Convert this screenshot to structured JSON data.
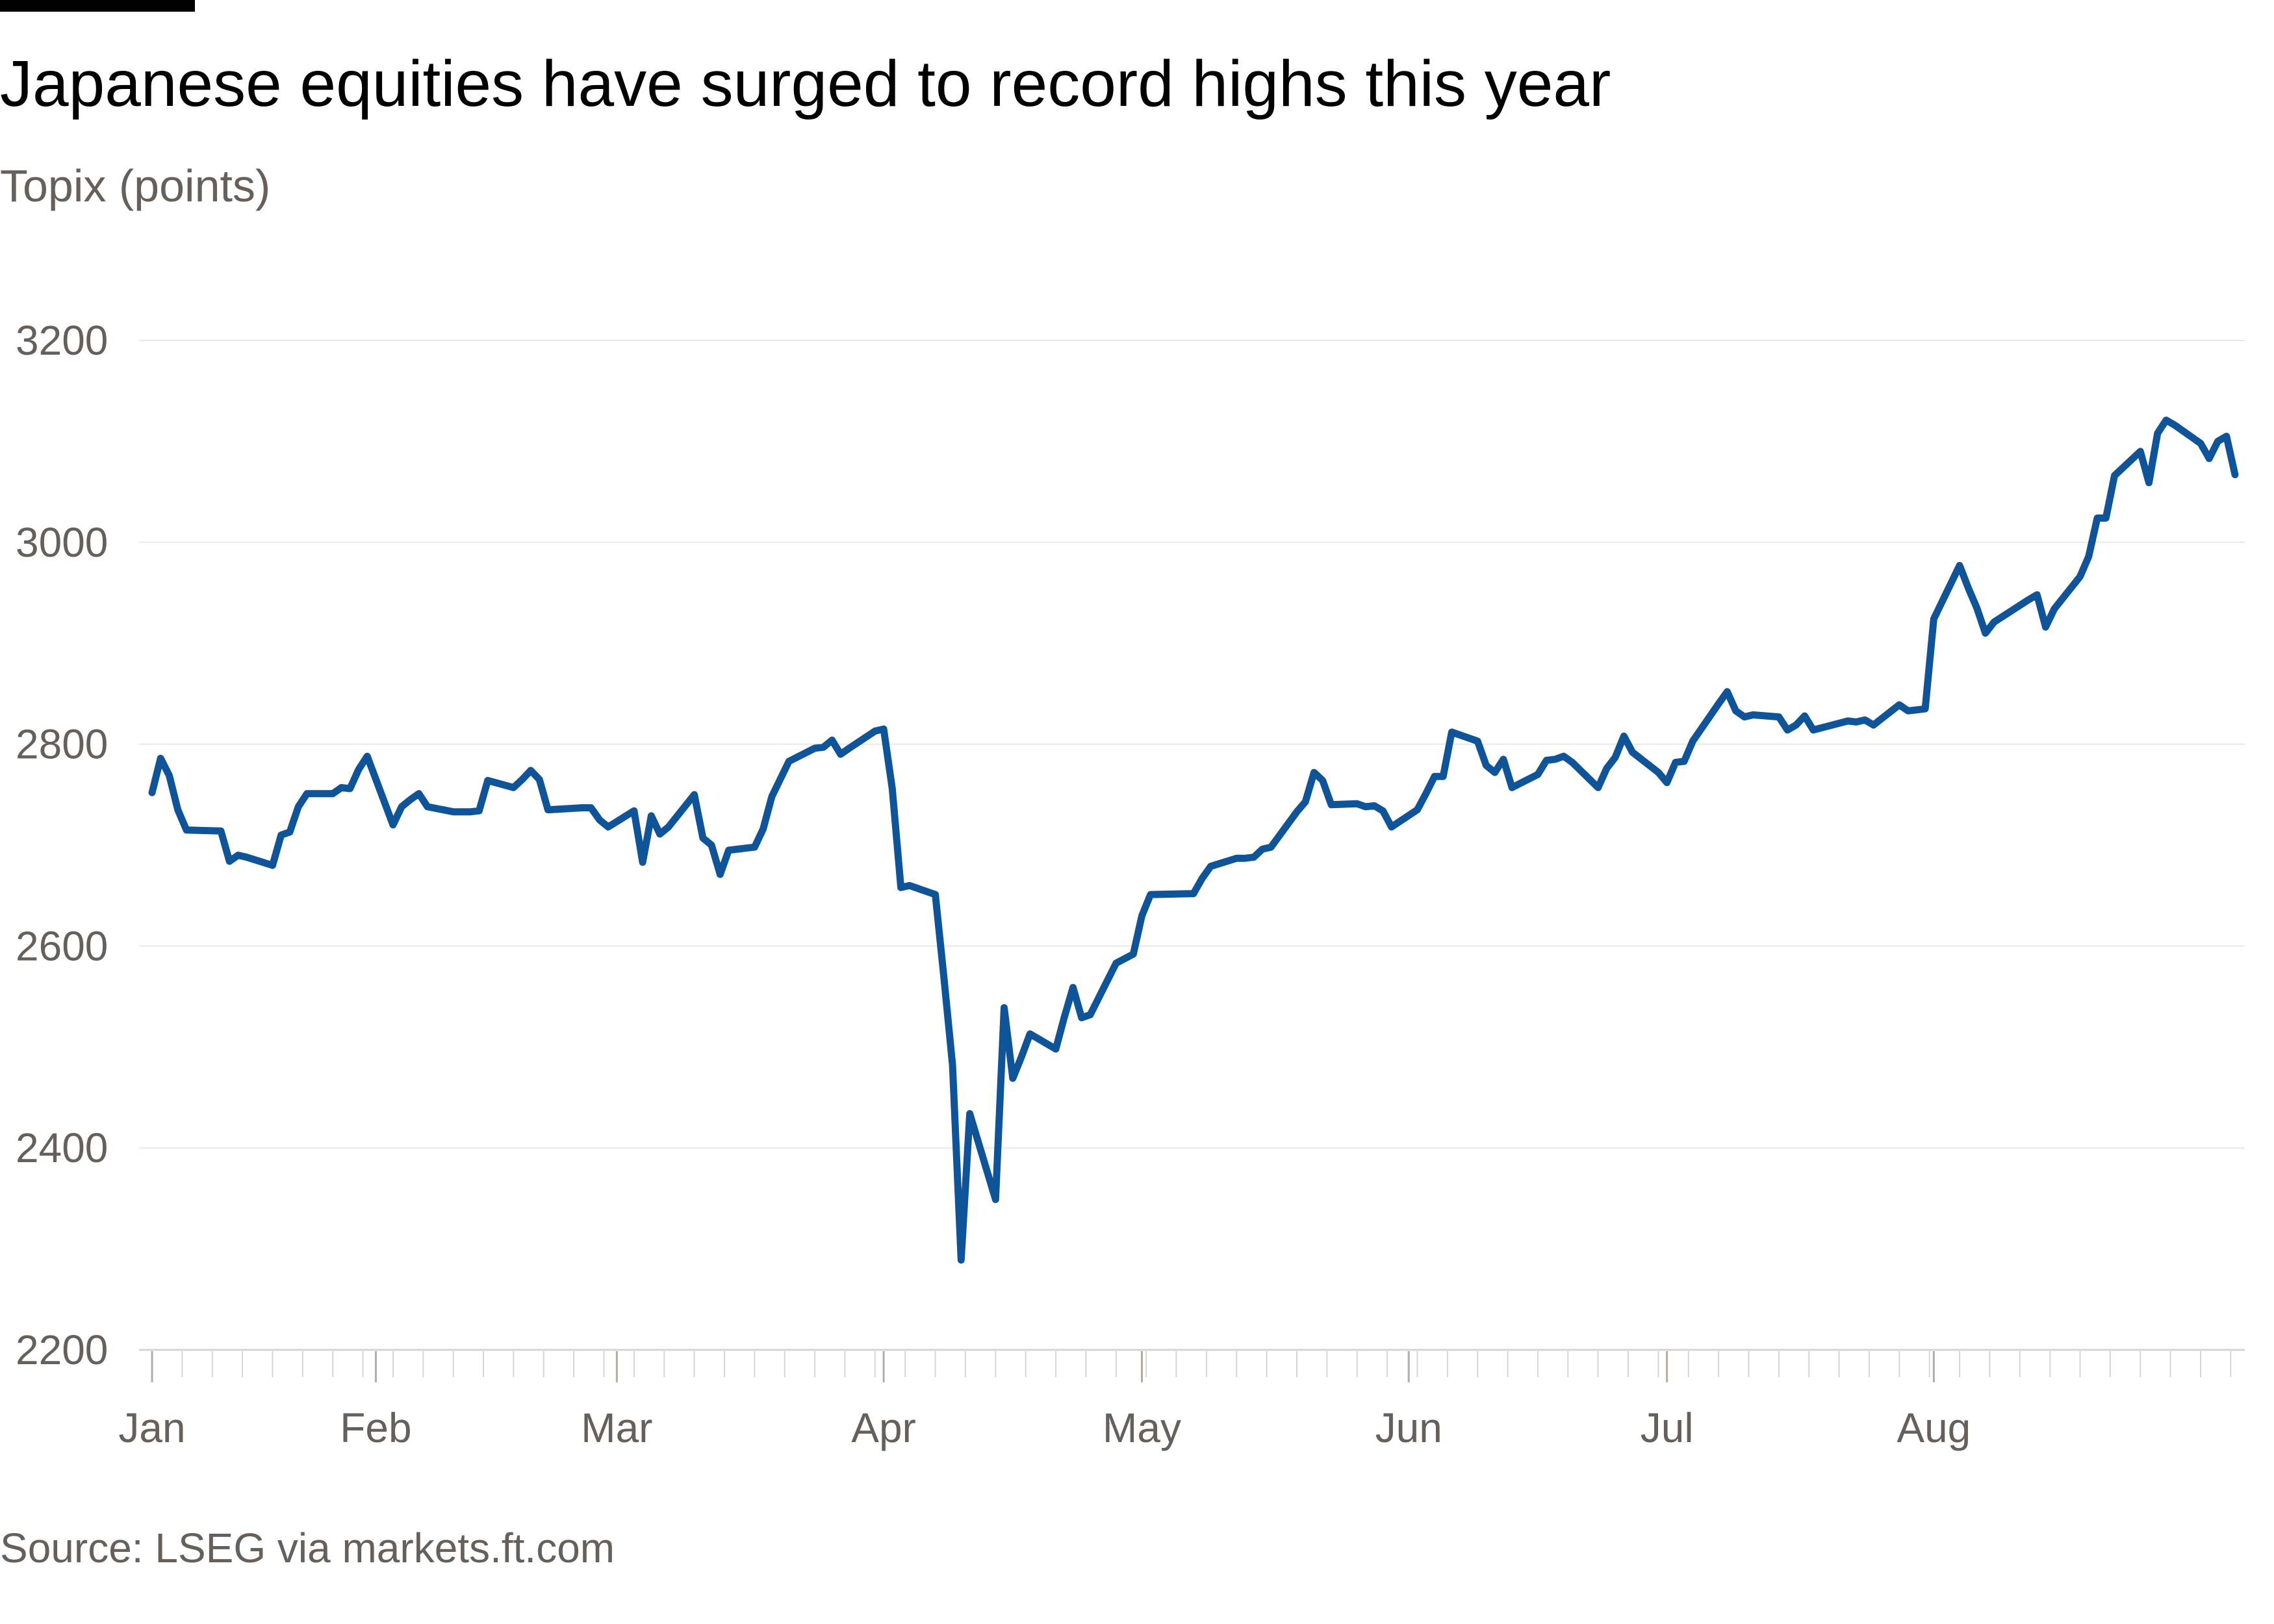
{
  "chart_data": {
    "type": "line",
    "title": "Japanese equities have surged to record highs this year",
    "subtitle": "Topix (points)",
    "source": "Source: LSEG via markets.ft.com",
    "ylim": [
      2200,
      3200
    ],
    "yticks": [
      2200,
      2400,
      2600,
      2800,
      3000,
      3200
    ],
    "ytick_labels": [
      "2200",
      "2400",
      "2600",
      "2800",
      "3000",
      "3200"
    ],
    "grid": "horizontal",
    "line_color": "#0f5499",
    "xticks": [
      {
        "label": "Jan",
        "date": "2025-01-06"
      },
      {
        "label": "Feb",
        "date": "2025-02-01"
      },
      {
        "label": "Mar",
        "date": "2025-03-01"
      },
      {
        "label": "Apr",
        "date": "2025-04-01"
      },
      {
        "label": "May",
        "date": "2025-05-01"
      },
      {
        "label": "Jun",
        "date": "2025-06-01"
      },
      {
        "label": "Jul",
        "date": "2025-07-01"
      },
      {
        "label": "Aug",
        "date": "2025-08-01"
      }
    ],
    "series": [
      {
        "values": [
          [
            "2025-01-06",
            2752
          ],
          [
            "2025-01-07",
            2786
          ],
          [
            "2025-01-08",
            2769
          ],
          [
            "2025-01-09",
            2735
          ],
          [
            "2025-01-10",
            2715
          ],
          [
            "2025-01-14",
            2714
          ],
          [
            "2025-01-15",
            2684
          ],
          [
            "2025-01-16",
            2690
          ],
          [
            "2025-01-17",
            2688
          ],
          [
            "2025-01-20",
            2680
          ],
          [
            "2025-01-21",
            2710
          ],
          [
            "2025-01-22",
            2713
          ],
          [
            "2025-01-23",
            2738
          ],
          [
            "2025-01-24",
            2751
          ],
          [
            "2025-01-27",
            2751
          ],
          [
            "2025-01-28",
            2757
          ],
          [
            "2025-01-29",
            2756
          ],
          [
            "2025-01-30",
            2775
          ],
          [
            "2025-01-31",
            2788
          ],
          [
            "2025-02-03",
            2720
          ],
          [
            "2025-02-04",
            2738
          ],
          [
            "2025-02-05",
            2745
          ],
          [
            "2025-02-06",
            2751
          ],
          [
            "2025-02-07",
            2738
          ],
          [
            "2025-02-10",
            2733
          ],
          [
            "2025-02-12",
            2733
          ],
          [
            "2025-02-13",
            2734
          ],
          [
            "2025-02-14",
            2764
          ],
          [
            "2025-02-17",
            2757
          ],
          [
            "2025-02-18",
            2765
          ],
          [
            "2025-02-19",
            2774
          ],
          [
            "2025-02-20",
            2765
          ],
          [
            "2025-02-21",
            2735
          ],
          [
            "2025-02-25",
            2737
          ],
          [
            "2025-02-26",
            2737
          ],
          [
            "2025-02-27",
            2725
          ],
          [
            "2025-02-28",
            2718
          ],
          [
            "2025-03-03",
            2734
          ],
          [
            "2025-03-04",
            2683
          ],
          [
            "2025-03-05",
            2729
          ],
          [
            "2025-03-06",
            2711
          ],
          [
            "2025-03-07",
            2718
          ],
          [
            "2025-03-10",
            2750
          ],
          [
            "2025-03-11",
            2707
          ],
          [
            "2025-03-12",
            2700
          ],
          [
            "2025-03-13",
            2671
          ],
          [
            "2025-03-14",
            2695
          ],
          [
            "2025-03-17",
            2698
          ],
          [
            "2025-03-18",
            2716
          ],
          [
            "2025-03-19",
            2748
          ],
          [
            "2025-03-21",
            2783
          ],
          [
            "2025-03-24",
            2796
          ],
          [
            "2025-03-25",
            2797
          ],
          [
            "2025-03-26",
            2804
          ],
          [
            "2025-03-27",
            2790
          ],
          [
            "2025-03-28",
            2796
          ],
          [
            "2025-03-31",
            2813
          ],
          [
            "2025-04-01",
            2815
          ],
          [
            "2025-04-02",
            2756
          ],
          [
            "2025-04-03",
            2658
          ],
          [
            "2025-04-04",
            2660
          ],
          [
            "2025-04-07",
            2651
          ],
          [
            "2025-04-08",
            2569
          ],
          [
            "2025-04-09",
            2482
          ],
          [
            "2025-04-10",
            2289
          ],
          [
            "2025-04-11",
            2434
          ],
          [
            "2025-04-14",
            2349
          ],
          [
            "2025-04-15",
            2539
          ],
          [
            "2025-04-16",
            2469
          ],
          [
            "2025-04-17",
            2490
          ],
          [
            "2025-04-18",
            2513
          ],
          [
            "2025-04-21",
            2498
          ],
          [
            "2025-04-22",
            2530
          ],
          [
            "2025-04-23",
            2559
          ],
          [
            "2025-04-24",
            2529
          ],
          [
            "2025-04-25",
            2532
          ],
          [
            "2025-04-28",
            2583
          ],
          [
            "2025-04-30",
            2592
          ],
          [
            "2025-05-01",
            2630
          ],
          [
            "2025-05-02",
            2651
          ],
          [
            "2025-05-07",
            2652
          ],
          [
            "2025-05-08",
            2667
          ],
          [
            "2025-05-09",
            2679
          ],
          [
            "2025-05-12",
            2687
          ],
          [
            "2025-05-13",
            2687
          ],
          [
            "2025-05-14",
            2688
          ],
          [
            "2025-05-15",
            2696
          ],
          [
            "2025-05-16",
            2698
          ],
          [
            "2025-05-19",
            2733
          ],
          [
            "2025-05-20",
            2743
          ],
          [
            "2025-05-21",
            2772
          ],
          [
            "2025-05-22",
            2764
          ],
          [
            "2025-05-23",
            2740
          ],
          [
            "2025-05-26",
            2741
          ],
          [
            "2025-05-27",
            2738
          ],
          [
            "2025-05-28",
            2739
          ],
          [
            "2025-05-29",
            2734
          ],
          [
            "2025-05-30",
            2718
          ],
          [
            "2025-06-02",
            2735
          ],
          [
            "2025-06-03",
            2751
          ],
          [
            "2025-06-04",
            2768
          ],
          [
            "2025-06-05",
            2768
          ],
          [
            "2025-06-06",
            2812
          ],
          [
            "2025-06-09",
            2803
          ],
          [
            "2025-06-10",
            2779
          ],
          [
            "2025-06-11",
            2772
          ],
          [
            "2025-06-12",
            2785
          ],
          [
            "2025-06-13",
            2757
          ],
          [
            "2025-06-16",
            2770
          ],
          [
            "2025-06-17",
            2784
          ],
          [
            "2025-06-18",
            2785
          ],
          [
            "2025-06-19",
            2788
          ],
          [
            "2025-06-20",
            2782
          ],
          [
            "2025-06-23",
            2757
          ],
          [
            "2025-06-24",
            2776
          ],
          [
            "2025-06-25",
            2787
          ],
          [
            "2025-06-26",
            2808
          ],
          [
            "2025-06-27",
            2792
          ],
          [
            "2025-06-30",
            2772
          ],
          [
            "2025-07-01",
            2762
          ],
          [
            "2025-07-02",
            2782
          ],
          [
            "2025-07-03",
            2783
          ],
          [
            "2025-07-04",
            2803
          ],
          [
            "2025-07-07",
            2840
          ],
          [
            "2025-07-08",
            2852
          ],
          [
            "2025-07-09",
            2833
          ],
          [
            "2025-07-10",
            2827
          ],
          [
            "2025-07-11",
            2829
          ],
          [
            "2025-07-14",
            2827
          ],
          [
            "2025-07-15",
            2814
          ],
          [
            "2025-07-16",
            2819
          ],
          [
            "2025-07-17",
            2828
          ],
          [
            "2025-07-18",
            2814
          ],
          [
            "2025-07-22",
            2823
          ],
          [
            "2025-07-23",
            2822
          ],
          [
            "2025-07-24",
            2824
          ],
          [
            "2025-07-25",
            2819
          ],
          [
            "2025-07-28",
            2839
          ],
          [
            "2025-07-29",
            2833
          ],
          [
            "2025-07-30",
            2834
          ],
          [
            "2025-07-31",
            2835
          ],
          [
            "2025-08-01",
            2924
          ],
          [
            "2025-08-04",
            2977
          ],
          [
            "2025-08-05",
            2955
          ],
          [
            "2025-08-06",
            2935
          ],
          [
            "2025-08-07",
            2910
          ],
          [
            "2025-08-08",
            2921
          ],
          [
            "2025-08-12",
            2943
          ],
          [
            "2025-08-13",
            2948
          ],
          [
            "2025-08-14",
            2916
          ],
          [
            "2025-08-15",
            2934
          ],
          [
            "2025-08-18",
            2966
          ],
          [
            "2025-08-19",
            2986
          ],
          [
            "2025-08-20",
            3024
          ],
          [
            "2025-08-21",
            3024
          ],
          [
            "2025-08-22",
            3066
          ],
          [
            "2025-08-25",
            3090
          ],
          [
            "2025-08-26",
            3059
          ],
          [
            "2025-08-27",
            3108
          ],
          [
            "2025-08-28",
            3121
          ],
          [
            "2025-08-29",
            3116
          ],
          [
            "2025-09-01",
            3098
          ],
          [
            "2025-09-02",
            3083
          ],
          [
            "2025-09-03",
            3100
          ],
          [
            "2025-09-04",
            3105
          ],
          [
            "2025-09-05",
            3067
          ]
        ]
      }
    ]
  }
}
